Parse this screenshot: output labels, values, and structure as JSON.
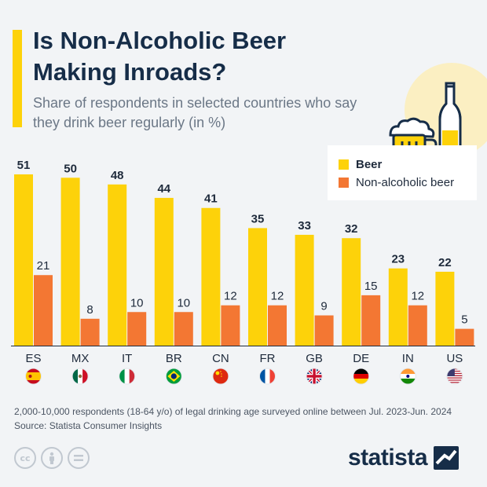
{
  "header": {
    "title": "Is Non-Alcoholic Beer Making Inroads?",
    "subtitle": "Share of respondents in selected countries who say they drink beer regularly (in %)"
  },
  "legend": {
    "beer_label": "Beer",
    "nab_label": "Non-alcoholic beer"
  },
  "colors": {
    "beer": "#fdd20a",
    "nab": "#f37733",
    "background": "#f2f4f6",
    "title": "#162d48"
  },
  "chart_data": {
    "type": "bar",
    "title": "Is Non-Alcoholic Beer Making Inroads?",
    "subtitle": "Share of respondents in selected countries who say they drink beer regularly (in %)",
    "categories": [
      "ES",
      "MX",
      "IT",
      "BR",
      "CN",
      "FR",
      "GB",
      "DE",
      "IN",
      "US"
    ],
    "series": [
      {
        "name": "Beer",
        "values": [
          51,
          50,
          48,
          44,
          41,
          35,
          33,
          32,
          23,
          22
        ]
      },
      {
        "name": "Non-alcoholic beer",
        "values": [
          21,
          8,
          10,
          10,
          12,
          12,
          9,
          15,
          12,
          5
        ]
      }
    ],
    "flags": [
      "flag-spain-icon",
      "flag-mexico-icon",
      "flag-italy-icon",
      "flag-brazil-icon",
      "flag-china-icon",
      "flag-france-icon",
      "flag-uk-icon",
      "flag-germany-icon",
      "flag-india-icon",
      "flag-usa-icon"
    ],
    "xlabel": "",
    "ylabel": "",
    "ylim": [
      0,
      51
    ],
    "grid": false,
    "legend_position": "top-right"
  },
  "footer": {
    "note": "2,000-10,000 respondents (18-64 y/o) of legal drinking age surveyed online between Jul. 2023-Jun. 2024",
    "source": "Source: Statista Consumer Insights",
    "brand": "statista"
  },
  "icons": [
    "creative-commons-icon",
    "attribution-icon",
    "no-derivatives-icon",
    "beer-mug-icon",
    "beer-bottle-icon",
    "statista-logo-icon"
  ]
}
